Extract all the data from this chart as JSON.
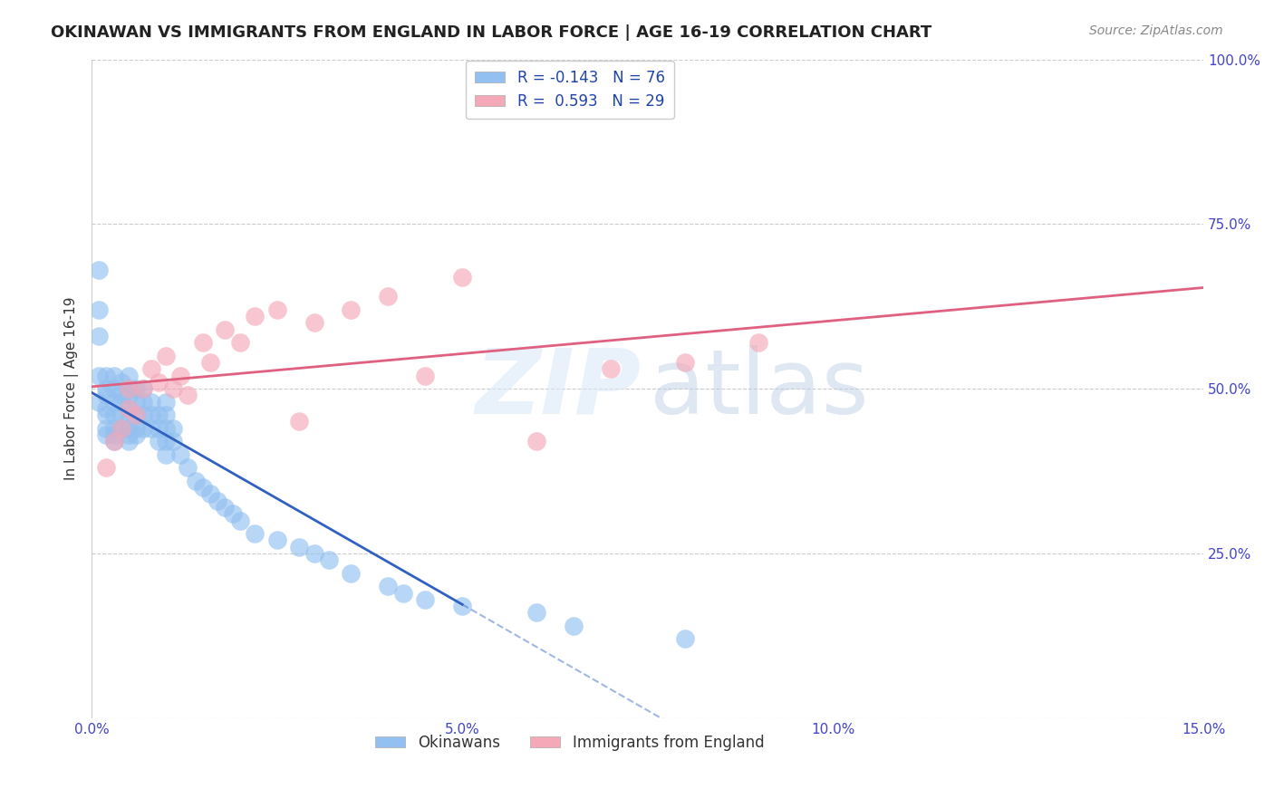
{
  "title": "OKINAWAN VS IMMIGRANTS FROM ENGLAND IN LABOR FORCE | AGE 16-19 CORRELATION CHART",
  "source": "Source: ZipAtlas.com",
  "ylabel": "In Labor Force | Age 16-19",
  "xlim": [
    0.0,
    0.15
  ],
  "ylim": [
    0.0,
    1.0
  ],
  "xticks": [
    0.0,
    0.05,
    0.1,
    0.15
  ],
  "xticklabels": [
    "0.0%",
    "5.0%",
    "10.0%",
    "15.0%"
  ],
  "yticks": [
    0.0,
    0.25,
    0.5,
    0.75,
    1.0
  ],
  "yticklabels": [
    "",
    "25.0%",
    "50.0%",
    "75.0%",
    "100.0%"
  ],
  "blue_color": "#92c0f0",
  "pink_color": "#f4a8b8",
  "trend_blue_color": "#3060c0",
  "trend_pink_color": "#e06080",
  "background_color": "#ffffff",
  "grid_color": "#cccccc",
  "axis_color": "#4444cc",
  "title_fontsize": 13,
  "label_fontsize": 11,
  "tick_fontsize": 11,
  "legend1_labels": [
    "R = -0.143   N = 76",
    "R =  0.593   N = 29"
  ],
  "legend2_labels": [
    "Okinawans",
    "Immigrants from England"
  ],
  "okinawan_x": [
    0.001,
    0.001,
    0.001,
    0.001,
    0.001,
    0.002,
    0.002,
    0.002,
    0.002,
    0.002,
    0.002,
    0.002,
    0.003,
    0.003,
    0.003,
    0.003,
    0.003,
    0.003,
    0.003,
    0.004,
    0.004,
    0.004,
    0.004,
    0.004,
    0.005,
    0.005,
    0.005,
    0.005,
    0.005,
    0.005,
    0.005,
    0.005,
    0.006,
    0.006,
    0.006,
    0.006,
    0.006,
    0.007,
    0.007,
    0.007,
    0.007,
    0.008,
    0.008,
    0.008,
    0.009,
    0.009,
    0.009,
    0.01,
    0.01,
    0.01,
    0.01,
    0.01,
    0.011,
    0.011,
    0.012,
    0.013,
    0.014,
    0.015,
    0.016,
    0.017,
    0.018,
    0.019,
    0.02,
    0.022,
    0.025,
    0.028,
    0.03,
    0.032,
    0.035,
    0.04,
    0.042,
    0.045,
    0.05,
    0.06,
    0.065,
    0.08
  ],
  "okinawan_y": [
    0.68,
    0.62,
    0.58,
    0.52,
    0.48,
    0.52,
    0.5,
    0.49,
    0.47,
    0.46,
    0.44,
    0.43,
    0.52,
    0.5,
    0.48,
    0.46,
    0.44,
    0.43,
    0.42,
    0.51,
    0.49,
    0.48,
    0.46,
    0.44,
    0.52,
    0.5,
    0.49,
    0.47,
    0.45,
    0.44,
    0.43,
    0.42,
    0.5,
    0.48,
    0.46,
    0.44,
    0.43,
    0.5,
    0.48,
    0.46,
    0.44,
    0.48,
    0.46,
    0.44,
    0.46,
    0.44,
    0.42,
    0.48,
    0.46,
    0.44,
    0.42,
    0.4,
    0.44,
    0.42,
    0.4,
    0.38,
    0.36,
    0.35,
    0.34,
    0.33,
    0.32,
    0.31,
    0.3,
    0.28,
    0.27,
    0.26,
    0.25,
    0.24,
    0.22,
    0.2,
    0.19,
    0.18,
    0.17,
    0.16,
    0.14,
    0.12
  ],
  "england_x": [
    0.002,
    0.003,
    0.004,
    0.005,
    0.005,
    0.006,
    0.007,
    0.008,
    0.009,
    0.01,
    0.011,
    0.012,
    0.013,
    0.015,
    0.016,
    0.018,
    0.02,
    0.022,
    0.025,
    0.028,
    0.03,
    0.035,
    0.04,
    0.045,
    0.05,
    0.06,
    0.07,
    0.08,
    0.09
  ],
  "england_y": [
    0.38,
    0.42,
    0.44,
    0.47,
    0.5,
    0.46,
    0.5,
    0.53,
    0.51,
    0.55,
    0.5,
    0.52,
    0.49,
    0.57,
    0.54,
    0.59,
    0.57,
    0.61,
    0.62,
    0.45,
    0.6,
    0.62,
    0.64,
    0.52,
    0.67,
    0.42,
    0.53,
    0.54,
    0.57
  ]
}
